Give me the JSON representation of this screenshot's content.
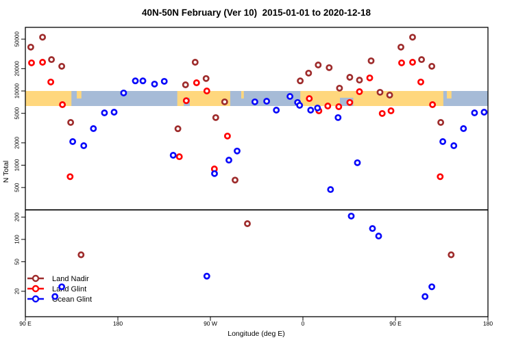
{
  "title": "40N-50N February (Ver 10)  2015-01-01 to 2020-12-18",
  "x_axis_label": "Longitude (deg E)",
  "y_axis_label": "N Total",
  "colors": {
    "land_nadir": "#9E2C2C",
    "land_glint": "#FF0000",
    "ocean_glint": "#0A0AFA",
    "map_land": "#FFD77D",
    "map_ocean": "#A6BBD7",
    "axis": "#000000",
    "background": "#FFFFFF"
  },
  "legend": {
    "items": [
      "Land Nadir",
      "Land Glint",
      "Ocean Glint"
    ]
  },
  "chart_data": {
    "type": "scatter",
    "title": "40N-50N February (Ver 10)  2015-01-01 to 2020-12-18",
    "xlabel": "Longitude (deg E)",
    "ylabel": "N Total",
    "x_axis": {
      "range_deg": [
        90,
        540
      ],
      "tick_positions_deg": [
        90,
        180,
        270,
        360,
        450,
        540
      ],
      "tick_labels": [
        "90 E",
        "180",
        "90 W",
        "0",
        "90 E",
        "180"
      ],
      "wrap_note": "axis spans 450 deg of longitude; points with longitude 90E-180E are plotted twice (at lon and lon+360)"
    },
    "y_axis": {
      "scale": "log10",
      "range": [
        9,
        72000
      ],
      "tick_values": [
        20,
        50,
        100,
        200,
        500,
        1000,
        2000,
        5000,
        10000,
        20000,
        50000
      ]
    },
    "reference_line_n": 250,
    "map_band": {
      "n_range": [
        6270,
        10000
      ],
      "land_segments_deg": [
        [
          90,
          134.8
        ],
        [
          237.8,
          289.3
        ],
        [
          357.5,
          496.6
        ]
      ],
      "island_patches_deg": [
        [
          140,
          144.5
        ],
        [
          300,
          302.5
        ],
        [
          500,
          504.5
        ]
      ],
      "water_patches_deg": [
        [
          244,
          250
        ],
        [
          396,
          409
        ]
      ]
    },
    "series": [
      {
        "name": "Land Nadir",
        "color_key": "land_nadir",
        "points_lon_n": [
          [
            106.7,
            53000
          ],
          [
            95.3,
            39000
          ],
          [
            115.4,
            26500
          ],
          [
            125.4,
            21500
          ],
          [
            255.2,
            24400
          ],
          [
            265.8,
            14700
          ],
          [
            245.8,
            12100
          ],
          [
            134.1,
            3770
          ],
          [
            238.4,
            3100
          ],
          [
            283.9,
            7130
          ],
          [
            294.0,
            630
          ],
          [
            275.2,
            4380
          ],
          [
            357.4,
            13700
          ],
          [
            5.5,
            17400
          ],
          [
            14.9,
            22400
          ],
          [
            25.5,
            20600
          ],
          [
            35.6,
            10900
          ],
          [
            45.6,
            15300
          ],
          [
            55.0,
            14000
          ],
          [
            66.3,
            25500
          ],
          [
            75.0,
            9600
          ],
          [
            84.4,
            8800
          ],
          [
            306.0,
            163
          ],
          [
            144.2,
            62
          ]
        ]
      },
      {
        "name": "Land Glint",
        "color_key": "land_glint",
        "points_lon_n": [
          [
            96.0,
            23900
          ],
          [
            106.7,
            24400
          ],
          [
            114.7,
            13200
          ],
          [
            126.1,
            6540
          ],
          [
            133.5,
            700
          ],
          [
            256.5,
            12900
          ],
          [
            266.5,
            10000
          ],
          [
            246.5,
            7400
          ],
          [
            273.9,
            890
          ],
          [
            286.6,
            2470
          ],
          [
            239.8,
            1300
          ],
          [
            6.2,
            7900
          ],
          [
            15.5,
            5400
          ],
          [
            24.2,
            6270
          ],
          [
            34.9,
            6140
          ],
          [
            45.6,
            7000
          ],
          [
            55.0,
            9800
          ],
          [
            65.0,
            15000
          ],
          [
            77.1,
            4970
          ],
          [
            85.7,
            5400
          ]
        ]
      },
      {
        "name": "Ocean Glint",
        "color_key": "ocean_glint",
        "points_lon_n": [
          [
            197.0,
            13700
          ],
          [
            204.3,
            13700
          ],
          [
            215.7,
            12400
          ],
          [
            225.1,
            13500
          ],
          [
            185.6,
            9400
          ],
          [
            166.9,
            5070
          ],
          [
            176.3,
            5180
          ],
          [
            156.2,
            3110
          ],
          [
            136.1,
            2080
          ],
          [
            146.8,
            1830
          ],
          [
            233.8,
            1360
          ],
          [
            313.3,
            7130
          ],
          [
            324.7,
            7280
          ],
          [
            334.1,
            5520
          ],
          [
            347.4,
            8430
          ],
          [
            354.8,
            7000
          ],
          [
            356.8,
            6400
          ],
          [
            7.5,
            5520
          ],
          [
            14.2,
            5890
          ],
          [
            34.2,
            4380
          ],
          [
            53.0,
            1080
          ],
          [
            26.9,
            470
          ],
          [
            296.0,
            1550
          ],
          [
            288.0,
            1170
          ],
          [
            274.0,
            770
          ],
          [
            266.5,
            32
          ],
          [
            47.0,
            206
          ],
          [
            67.7,
            140
          ],
          [
            73.7,
            111
          ],
          [
            125.4,
            23
          ],
          [
            118.8,
            17
          ]
        ]
      }
    ]
  }
}
